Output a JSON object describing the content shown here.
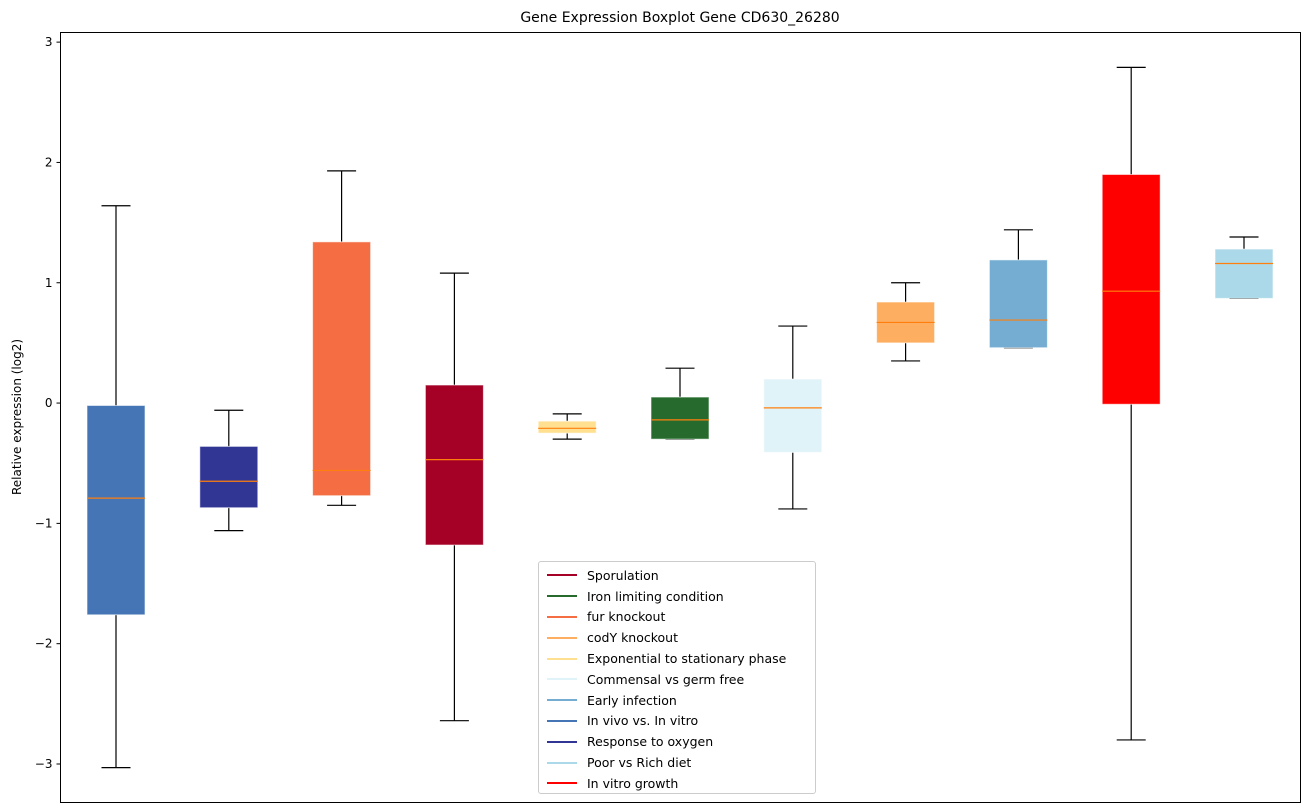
{
  "chart_data": {
    "type": "boxplot",
    "title": "Gene Expression Boxplot Gene CD630_26280",
    "xlabel": "",
    "ylabel": "Relative expression (log2)",
    "ylim": [
      -3.32,
      3.08
    ],
    "yticks": [
      -3,
      -2,
      -1,
      0,
      1,
      2,
      3
    ],
    "ytick_labels": [
      "−3",
      "−2",
      "−1",
      "0",
      "1",
      "2",
      "3"
    ],
    "xticks_visible": false,
    "grid": false,
    "legend_position": "bottom-center",
    "median_color": "#ff7f0e",
    "series": [
      {
        "name": "In vivo vs. In vitro",
        "color": "#4575b4",
        "whisker_low": -3.03,
        "q1": -1.76,
        "median": -0.79,
        "q3": -0.02,
        "whisker_high": 1.64
      },
      {
        "name": "Response to oxygen",
        "color": "#313695",
        "whisker_low": -1.06,
        "q1": -0.87,
        "median": -0.65,
        "q3": -0.36,
        "whisker_high": -0.06
      },
      {
        "name": "fur knockout",
        "color": "#f46d43",
        "whisker_low": -0.85,
        "q1": -0.77,
        "median": -0.56,
        "q3": 1.34,
        "whisker_high": 1.93
      },
      {
        "name": "Sporulation",
        "color": "#a50026",
        "whisker_low": -2.64,
        "q1": -1.18,
        "median": -0.47,
        "q3": 0.15,
        "whisker_high": 1.08
      },
      {
        "name": "Exponential to stationary phase",
        "color": "#fee090",
        "whisker_low": -0.3,
        "q1": -0.25,
        "median": -0.21,
        "q3": -0.15,
        "whisker_high": -0.09
      },
      {
        "name": "Iron limiting condition",
        "color": "#266b2d",
        "whisker_low": -0.3,
        "q1": -0.3,
        "median": -0.14,
        "q3": 0.05,
        "whisker_high": 0.29
      },
      {
        "name": "Commensal vs germ free",
        "color": "#e0f3f8",
        "whisker_low": -0.88,
        "q1": -0.41,
        "median": -0.04,
        "q3": 0.2,
        "whisker_high": 0.64
      },
      {
        "name": "codY knockout",
        "color": "#fdae61",
        "whisker_low": 0.35,
        "q1": 0.5,
        "median": 0.67,
        "q3": 0.84,
        "whisker_high": 1.0
      },
      {
        "name": "Early infection",
        "color": "#74add1",
        "whisker_low": 0.46,
        "q1": 0.46,
        "median": 0.69,
        "q3": 1.19,
        "whisker_high": 1.44
      },
      {
        "name": "In vitro growth",
        "color": "#ff0000",
        "whisker_low": -2.8,
        "q1": -0.01,
        "median": 0.93,
        "q3": 1.9,
        "whisker_high": 2.79
      },
      {
        "name": "Poor vs Rich diet",
        "color": "#abd9e9",
        "whisker_low": 0.87,
        "q1": 0.87,
        "median": 1.16,
        "q3": 1.28,
        "whisker_high": 1.38
      }
    ],
    "legend": [
      {
        "label": "Sporulation",
        "color": "#a50026"
      },
      {
        "label": "Iron limiting condition",
        "color": "#266b2d"
      },
      {
        "label": "fur knockout",
        "color": "#f46d43"
      },
      {
        "label": "codY knockout",
        "color": "#fdae61"
      },
      {
        "label": "Exponential to stationary phase",
        "color": "#fee090"
      },
      {
        "label": "Commensal vs germ free",
        "color": "#e0f3f8"
      },
      {
        "label": "Early infection",
        "color": "#74add1"
      },
      {
        "label": "In vivo vs. In vitro",
        "color": "#4575b4"
      },
      {
        "label": "Response to oxygen",
        "color": "#313695"
      },
      {
        "label": "Poor vs Rich diet",
        "color": "#abd9e9"
      },
      {
        "label": "In vitro growth",
        "color": "#ff0000"
      }
    ]
  }
}
